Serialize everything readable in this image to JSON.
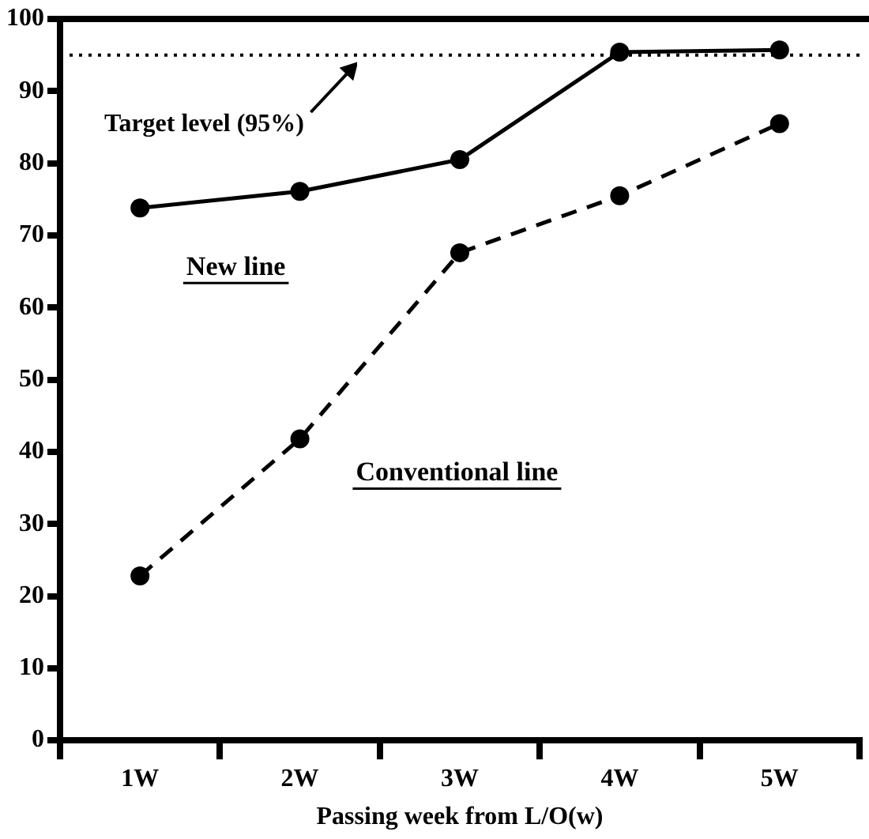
{
  "chart_data": {
    "type": "line",
    "xlabel": "Passing week from L/O(w)",
    "categories": [
      "1W",
      "2W",
      "3W",
      "4W",
      "5W"
    ],
    "series": [
      {
        "name": "New line",
        "color": "#000000",
        "line_style": "solid",
        "values": [
          73.8,
          76.1,
          80.5,
          95.4,
          95.7
        ]
      },
      {
        "name": "Conventional line",
        "color": "#000000",
        "line_style": "dashed",
        "values": [
          22.8,
          41.8,
          67.6,
          75.5,
          85.5
        ]
      }
    ],
    "ylim": [
      0,
      100
    ],
    "yticks": [
      0,
      10,
      20,
      30,
      40,
      50,
      60,
      70,
      80,
      90,
      100
    ],
    "ref_lines": [
      {
        "axis": "y",
        "value": 95,
        "label": "Target level (95%)",
        "color": "#000000",
        "line_style": "dotted"
      }
    ],
    "grid": false,
    "legend": false,
    "marker": "circle"
  }
}
